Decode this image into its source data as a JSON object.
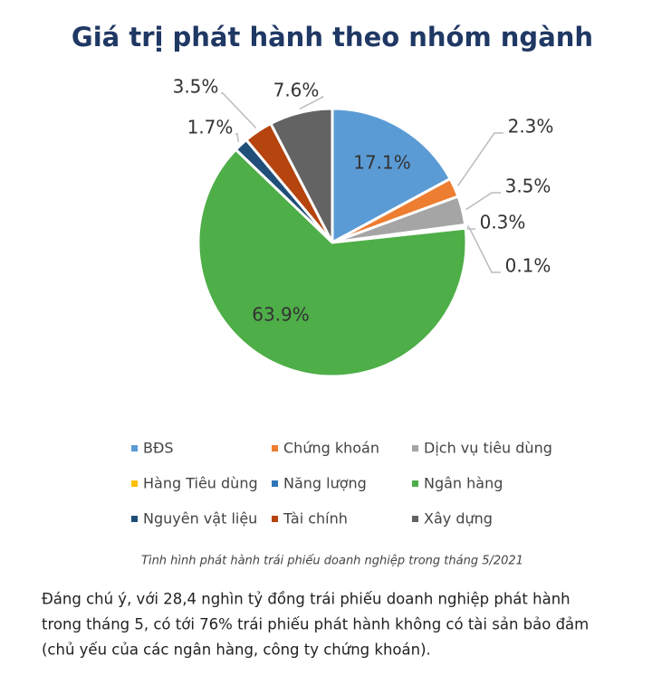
{
  "chart_data": {
    "type": "pie",
    "title": "Giá trị phát hành theo nhóm ngành",
    "categories": [
      "BĐS",
      "Chứng khoán",
      "Dịch vụ tiêu dùng",
      "Hàng Tiêu dùng",
      "Năng lượng",
      "Ngân hàng",
      "Nguyên vật liệu",
      "Tài chính",
      "Xây dựng"
    ],
    "values": [
      17.1,
      2.3,
      3.5,
      0.3,
      0.1,
      63.9,
      1.7,
      3.5,
      7.6
    ],
    "value_labels": [
      "17.1%",
      "2.3%",
      "3.5%",
      "0.3%",
      "0.1%",
      "63.9%",
      "1.7%",
      "3.5%",
      "7.6%"
    ],
    "colors": [
      "#5b9bd5",
      "#ed7d31",
      "#a5a5a5",
      "#ffc000",
      "#2e75b6",
      "#4eae48",
      "#1f4e79",
      "#b5440f",
      "#636363"
    ],
    "legend": "bottom"
  },
  "caption": "Tình hình phát hành trái phiếu doanh nghiệp trong tháng 5/2021",
  "body": {
    "lines": [
      "Đáng chú ý, với 28,4 nghìn tỷ đồng trái phiếu doanh nghiệp phát hành",
      "trong tháng 5, có tới 76% trái phiếu phát hành không có tài sản bảo đảm",
      "(chủ yếu của các ngân hàng, công ty chứng khoán)."
    ]
  }
}
